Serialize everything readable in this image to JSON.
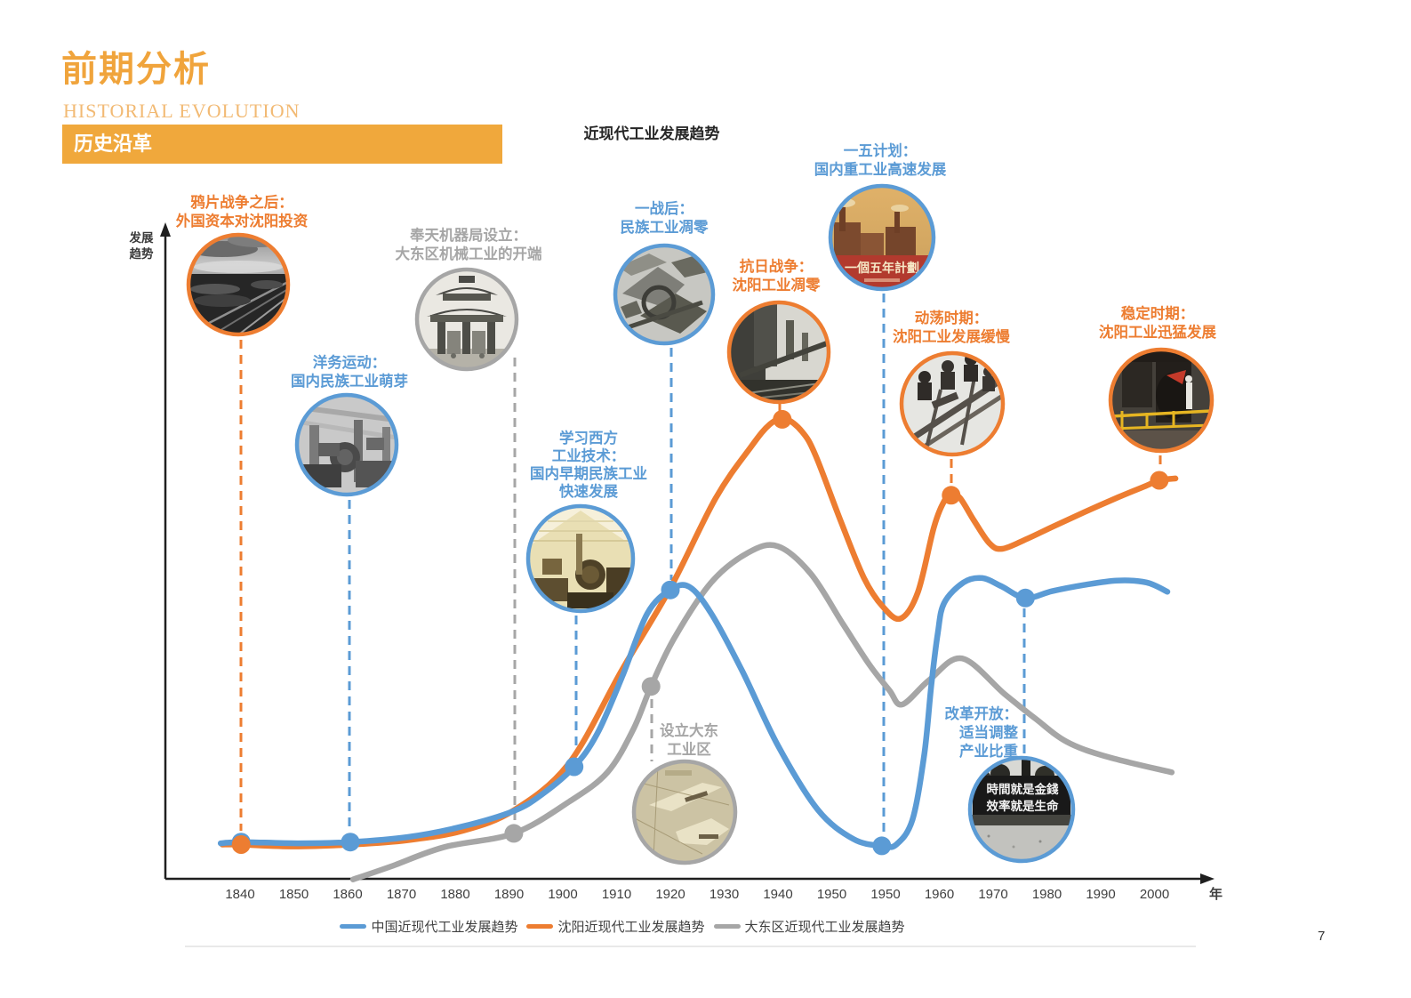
{
  "header": {
    "title": "前期分析",
    "subtitle": "HISTORIAL EVOLUTION",
    "banner": "历史沿革"
  },
  "chart": {
    "title": "近现代工业发展趋势",
    "y_axis_label": "发展\n趋势",
    "x_axis_label": "年",
    "page_number": "7"
  },
  "milestones": [
    {
      "id": "opium-war",
      "label": "鸦片战争之后：\n外国资本对沈阳投资",
      "color": "orange",
      "photo": "railway-yard-bw-photo"
    },
    {
      "id": "westernization",
      "label": "洋务运动：\n国内民族工业萌芽",
      "color": "blue",
      "photo": "factory-interior-bw-photo"
    },
    {
      "id": "fengtian-bureau",
      "label": "奉天机器局设立：\n大东区机械工业的开端",
      "color": "gray",
      "photo": "old-gate-building-bw-photo"
    },
    {
      "id": "learn-west",
      "label": "学习西方\n工业技术：\n国内早期民族工业\n快速发展",
      "color": "blue",
      "photo": "early-workshop-tinted-photo"
    },
    {
      "id": "post-ww1",
      "label": "一战后：\n民族工业凋零",
      "color": "blue",
      "photo": "ruined-machinery-bw-photo"
    },
    {
      "id": "anti-japanese-war",
      "label": "抗日战争：\n沈阳工业凋零",
      "color": "orange",
      "photo": "steel-plant-bw-photo"
    },
    {
      "id": "five-year-plan",
      "label": "一五计划：\n国内重工业高速发展",
      "color": "blue",
      "photo": "five-year-plan-poster",
      "photo_text": "一個五年計劃"
    },
    {
      "id": "turmoil",
      "label": "动荡时期：\n沈阳工业发展缓慢",
      "color": "orange",
      "photo": "workers-scaffold-bw-photo"
    },
    {
      "id": "dadong-zone",
      "label": "设立大东\n工业区",
      "color": "gray",
      "photo": "old-map-sepia-photo"
    },
    {
      "id": "reform-opening",
      "label": "改革开放：\n适当调整\n产业比重",
      "color": "blue",
      "photo": "slogan-billboard-bw-photo",
      "photo_text": "時間就是金錢\n效率就是生命"
    },
    {
      "id": "stable-period",
      "label": "稳定时期：\n沈阳工业迅猛发展",
      "color": "orange",
      "photo": "modern-foundry-photo"
    }
  ],
  "chart_data": {
    "type": "line",
    "title": "近现代工业发展趋势",
    "xlabel": "年",
    "ylabel": "发展趋势",
    "x_ticks": [
      "1840",
      "1850",
      "1860",
      "1870",
      "1880",
      "1890",
      "1900",
      "1910",
      "1920",
      "1930",
      "1940",
      "1950",
      "1950",
      "1960",
      "1970",
      "1980",
      "1990",
      "2000"
    ],
    "value_range": [
      0,
      100
    ],
    "series": [
      {
        "name": "中国近现代工业发展趋势",
        "color": "#5B9BD5",
        "points": [
          [
            -0.36,
            5.7
          ],
          [
            0.02,
            5.9
          ],
          [
            1.07,
            5.7
          ],
          [
            2.05,
            5.9
          ],
          [
            3.11,
            6.7
          ],
          [
            4.13,
            8.4
          ],
          [
            5.09,
            10.9
          ],
          [
            5.62,
            13.6
          ],
          [
            6.21,
            18.0
          ],
          [
            6.64,
            23.3
          ],
          [
            7.11,
            32.6
          ],
          [
            7.57,
            42.6
          ],
          [
            8.0,
            46.4
          ],
          [
            8.35,
            46.9
          ],
          [
            8.76,
            42.6
          ],
          [
            9.34,
            33.3
          ],
          [
            10.0,
            21.4
          ],
          [
            10.74,
            11.1
          ],
          [
            11.4,
            6.4
          ],
          [
            11.93,
            5.3
          ],
          [
            12.2,
            5.5
          ],
          [
            12.5,
            9.5
          ],
          [
            12.72,
            20.0
          ],
          [
            12.85,
            31.0
          ],
          [
            12.97,
            39.4
          ],
          [
            13.09,
            44.3
          ],
          [
            13.45,
            47.6
          ],
          [
            13.8,
            48.3
          ],
          [
            14.15,
            47.0
          ],
          [
            14.6,
            45.1
          ],
          [
            15.1,
            46.2
          ],
          [
            15.7,
            47.2
          ],
          [
            16.3,
            47.9
          ],
          [
            16.85,
            47.6
          ],
          [
            17.24,
            46.1
          ]
        ],
        "markers": [
          [
            0.02,
            5.9
          ],
          [
            2.05,
            5.9
          ],
          [
            6.21,
            18.0
          ],
          [
            8.0,
            46.4
          ],
          [
            11.93,
            5.3
          ],
          [
            14.6,
            45.1
          ]
        ]
      },
      {
        "name": "沈阳近现代工业发展趋势",
        "color": "#ED7D31",
        "points": [
          [
            -0.33,
            5.5
          ],
          [
            0.02,
            5.5
          ],
          [
            1.0,
            5.2
          ],
          [
            2.05,
            5.5
          ],
          [
            3.11,
            6.2
          ],
          [
            4.13,
            7.7
          ],
          [
            5.09,
            11.0
          ],
          [
            6.12,
            18.6
          ],
          [
            7.11,
            33.7
          ],
          [
            8.0,
            46.7
          ],
          [
            8.84,
            61.1
          ],
          [
            9.5,
            69.4
          ],
          [
            9.85,
            73.0
          ],
          [
            10.13,
            73.9
          ],
          [
            10.45,
            71.8
          ],
          [
            10.7,
            68.0
          ],
          [
            11.16,
            57.6
          ],
          [
            11.6,
            48.3
          ],
          [
            11.95,
            43.7
          ],
          [
            12.28,
            41.8
          ],
          [
            12.6,
            46.0
          ],
          [
            12.9,
            56.5
          ],
          [
            13.1,
            60.8
          ],
          [
            13.22,
            61.6
          ],
          [
            13.38,
            61.2
          ],
          [
            13.64,
            57.6
          ],
          [
            13.93,
            53.9
          ],
          [
            14.17,
            53.0
          ],
          [
            14.63,
            54.6
          ],
          [
            15.12,
            56.6
          ],
          [
            15.7,
            58.9
          ],
          [
            16.33,
            61.3
          ],
          [
            16.81,
            63.0
          ],
          [
            17.09,
            64.0
          ],
          [
            17.39,
            64.3
          ]
        ],
        "markers": [
          [
            0.02,
            5.5
          ],
          [
            10.08,
            73.8
          ],
          [
            13.22,
            61.6
          ],
          [
            17.09,
            64.0
          ]
        ]
      },
      {
        "name": "大东区近现代工业发展趋势",
        "color": "#A6A6A6",
        "points": [
          [
            2.1,
            -0.1
          ],
          [
            2.81,
            2.0
          ],
          [
            3.8,
            5.1
          ],
          [
            5.09,
            7.3
          ],
          [
            6.12,
            12.4
          ],
          [
            6.83,
            17.1
          ],
          [
            7.31,
            24.0
          ],
          [
            7.64,
            30.9
          ],
          [
            8.07,
            38.6
          ],
          [
            8.76,
            47.6
          ],
          [
            9.45,
            52.4
          ],
          [
            10.0,
            53.4
          ],
          [
            10.61,
            49.0
          ],
          [
            11.21,
            40.9
          ],
          [
            11.7,
            34.4
          ],
          [
            12.07,
            30.3
          ],
          [
            12.31,
            28.0
          ],
          [
            12.81,
            31.9
          ],
          [
            13.42,
            35.4
          ],
          [
            14.21,
            29.7
          ],
          [
            14.79,
            25.7
          ],
          [
            15.37,
            22.0
          ],
          [
            16.12,
            19.6
          ],
          [
            17.32,
            17.1
          ]
        ],
        "markers": [
          [
            5.09,
            7.3
          ],
          [
            7.64,
            30.9
          ]
        ]
      }
    ],
    "legend": [
      "中国近现代工业发展趋势",
      "沈阳近现代工业发展趋势",
      "大东区近现代工业发展趋势"
    ]
  }
}
